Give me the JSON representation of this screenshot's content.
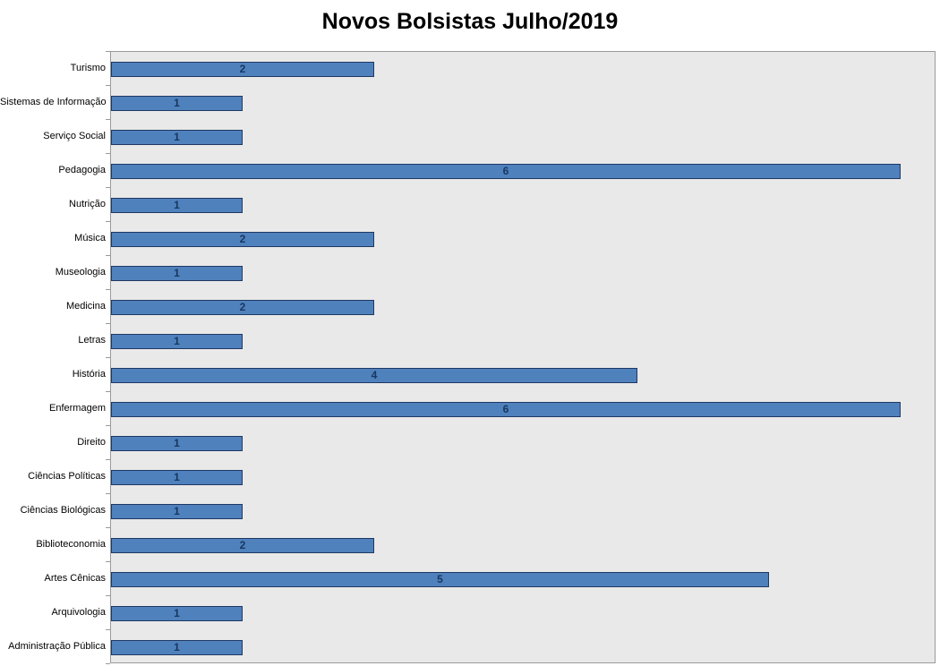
{
  "chart_data": {
    "type": "bar",
    "orientation": "horizontal",
    "title": "Novos Bolsistas Julho/2019",
    "categories": [
      "Turismo",
      "Sistemas de Informação",
      "Serviço Social",
      "Pedagogia",
      "Nutrição",
      "Música",
      "Museologia",
      "Medicina",
      "Letras",
      "História",
      "Enfermagem",
      "Direito",
      "Ciências Políticas",
      "Ciências Biológicas",
      "Biblioteconomia",
      "Artes Cênicas",
      "Arquivologia",
      "Administração Pública"
    ],
    "values": [
      2,
      1,
      1,
      6,
      1,
      2,
      1,
      2,
      1,
      4,
      6,
      1,
      1,
      1,
      2,
      5,
      1,
      1
    ],
    "xlim": [
      0,
      6.27
    ],
    "grid": false,
    "legend": false,
    "data_labels_position": "inside-center",
    "colors": {
      "bar_fill": "#4F81BD",
      "bar_border": "#1F3864",
      "plot_background": "#E9E9E9",
      "plot_border": "#9A9A9A",
      "category_text": "#000000",
      "value_text": "#17375E",
      "title_text": "#000000"
    }
  }
}
